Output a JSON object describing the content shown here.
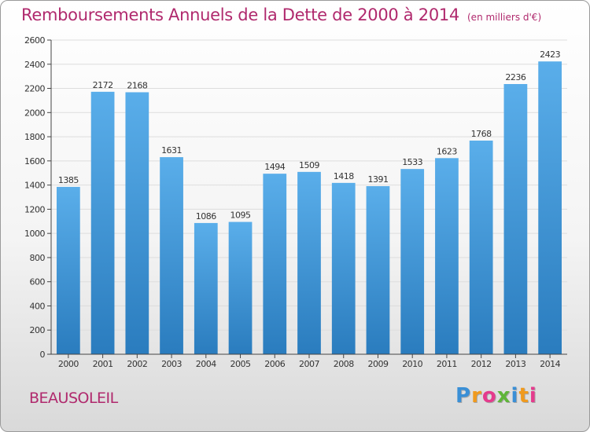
{
  "header": {
    "title": "Remboursements Annuels de la Dette de 2000 à 2014",
    "unit": "(en milliers d'€)"
  },
  "footer": {
    "town": "BEAUSOLEIL",
    "logo": "Proxiti",
    "logo_letters": [
      "P",
      "r",
      "o",
      "x",
      "i",
      "t",
      "i"
    ],
    "logo_colors": [
      "#3a8fd6",
      "#f09a1e",
      "#e53b8d",
      "#5fb539",
      "#3a8fd6",
      "#f09a1e",
      "#e53b8d"
    ]
  },
  "chart_data": {
    "type": "bar",
    "title": "Remboursements Annuels de la Dette de 2000 à 2014",
    "xlabel": "",
    "ylabel": "",
    "categories": [
      "2000",
      "2001",
      "2002",
      "2003",
      "2004",
      "2005",
      "2006",
      "2007",
      "2008",
      "2009",
      "2010",
      "2011",
      "2012",
      "2013",
      "2014"
    ],
    "values": [
      1385,
      2172,
      2168,
      1631,
      1086,
      1095,
      1494,
      1509,
      1418,
      1391,
      1533,
      1623,
      1768,
      2236,
      2423
    ],
    "ylim": [
      0,
      2600
    ],
    "yticks": [
      0,
      200,
      400,
      600,
      800,
      1000,
      1200,
      1400,
      1600,
      1800,
      2000,
      2200,
      2400,
      2600
    ],
    "grid": true,
    "colors": {
      "bar_light": "#5aaeea",
      "bar_dark": "#2a7cbe",
      "grid": "#dddddd",
      "axis": "#444444",
      "label": "#333333"
    }
  }
}
